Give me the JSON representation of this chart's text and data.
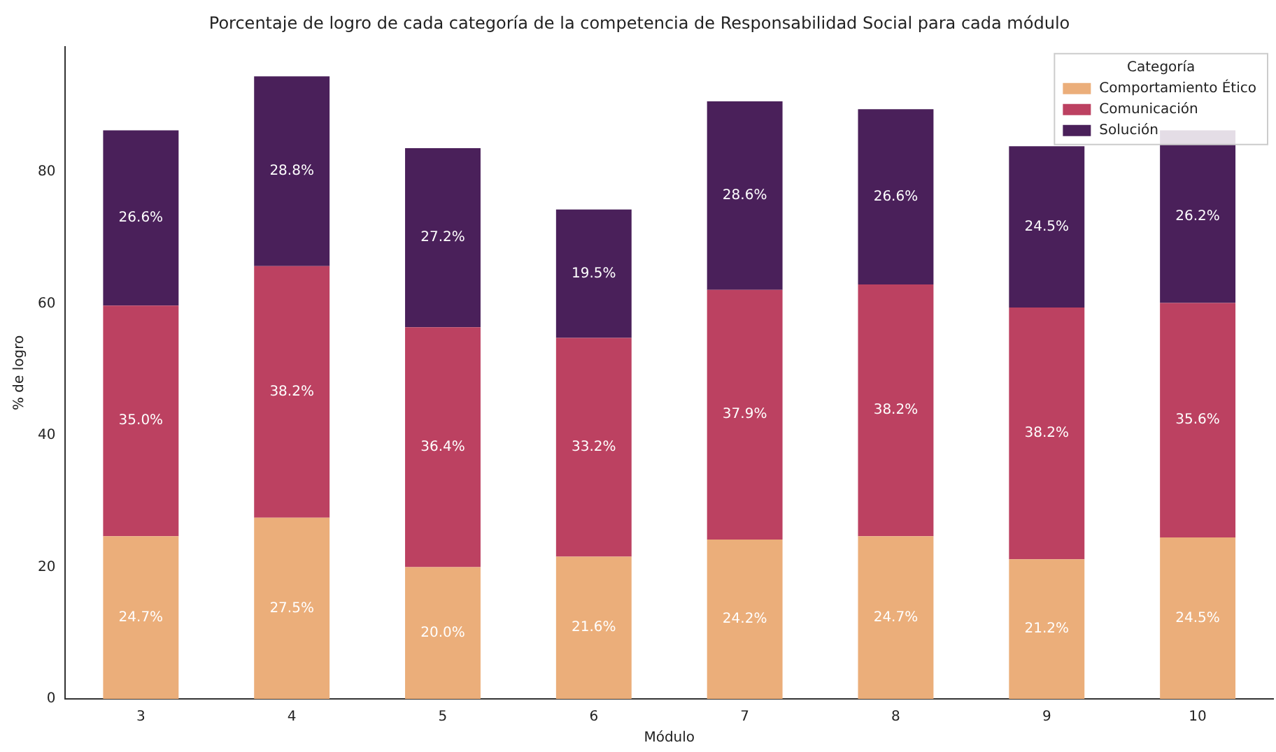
{
  "chart_data": {
    "type": "bar",
    "stacked": true,
    "title": "Porcentaje de logro de cada categoría de la competencia de Responsabilidad Social para cada módulo",
    "xlabel": "Módulo",
    "ylabel": "% de logro",
    "legend_title": "Categoría",
    "legend": "top right",
    "grid": false,
    "categories": [
      "3",
      "4",
      "5",
      "6",
      "7",
      "8",
      "9",
      "10"
    ],
    "ylim": [
      0,
      99
    ],
    "yticks": [
      0,
      20,
      40,
      60,
      80
    ],
    "series": [
      {
        "name": "Comportamiento Ético",
        "color": "#ebae7a",
        "values": [
          24.7,
          27.5,
          20.0,
          21.6,
          24.2,
          24.7,
          21.2,
          24.5
        ],
        "value_labels": [
          "24.7%",
          "27.5%",
          "20.0%",
          "21.6%",
          "24.2%",
          "24.7%",
          "21.2%",
          "24.5%"
        ]
      },
      {
        "name": "Comunicación",
        "color": "#bc4161",
        "values": [
          35.0,
          38.2,
          36.4,
          33.2,
          37.9,
          38.2,
          38.2,
          35.6
        ],
        "value_labels": [
          "35.0%",
          "38.2%",
          "36.4%",
          "33.2%",
          "37.9%",
          "38.2%",
          "38.2%",
          "35.6%"
        ]
      },
      {
        "name": "Solución",
        "color": "#4a205a",
        "values": [
          26.6,
          28.8,
          27.2,
          19.5,
          28.6,
          26.6,
          24.5,
          26.2
        ],
        "value_labels": [
          "26.6%",
          "28.8%",
          "27.2%",
          "19.5%",
          "28.6%",
          "26.6%",
          "24.5%",
          "26.2%"
        ]
      }
    ]
  }
}
